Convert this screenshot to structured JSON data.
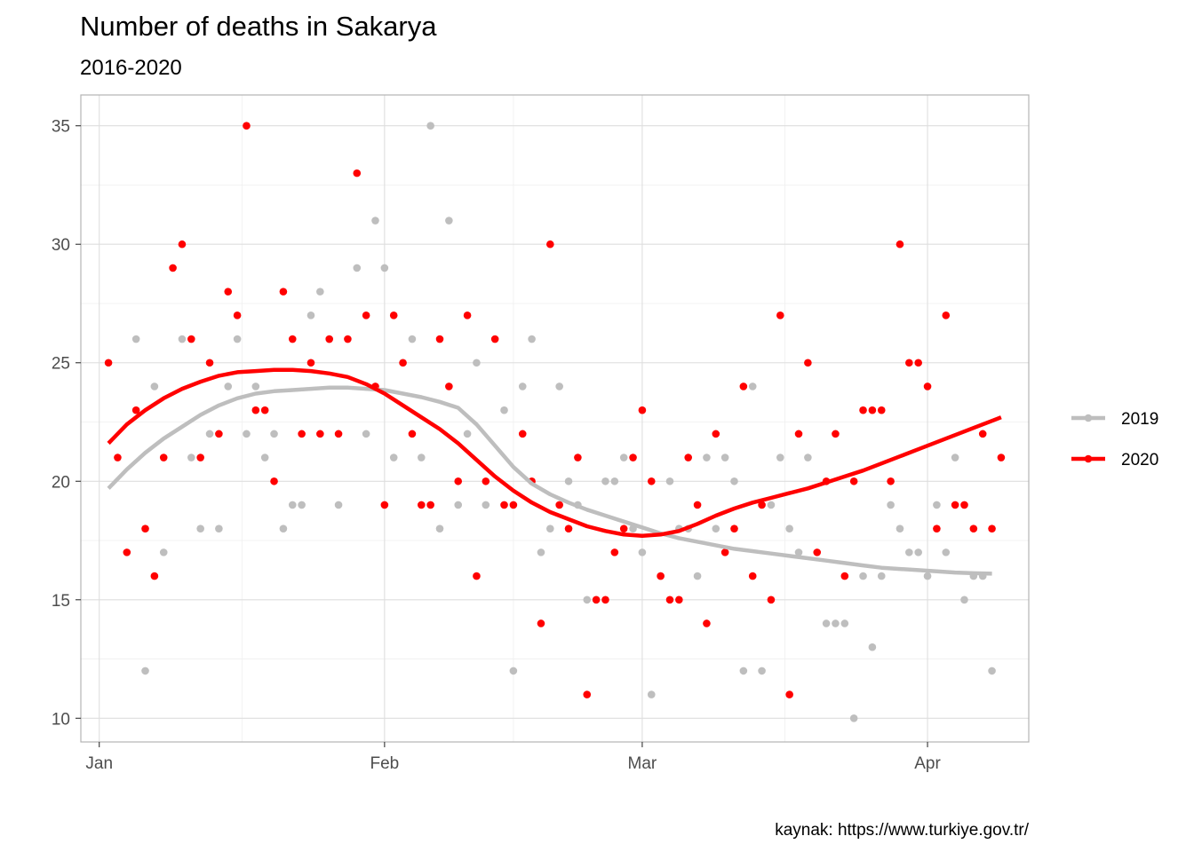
{
  "chart_data": {
    "type": "scatter",
    "title": "Number of deaths in Sakarya",
    "subtitle": "2016-2020",
    "caption": "kaynak: https://www.turkiye.gov.tr/",
    "xlabel": "",
    "ylabel": "",
    "x_unit": "day of year",
    "xlim": [
      -2,
      101
    ],
    "ylim": [
      9.0,
      36.3
    ],
    "x_ticks": [
      {
        "value": 0,
        "label": "Jan"
      },
      {
        "value": 31,
        "label": "Feb"
      },
      {
        "value": 59,
        "label": "Mar"
      },
      {
        "value": 90,
        "label": "Apr"
      }
    ],
    "y_ticks": [
      10,
      15,
      20,
      25,
      30,
      35
    ],
    "legend_position": "right",
    "series": [
      {
        "name": "2019",
        "color": "#bebebe",
        "points": [
          [
            4,
            26
          ],
          [
            5,
            12
          ],
          [
            6,
            24
          ],
          [
            7,
            17
          ],
          [
            9,
            26
          ],
          [
            10,
            21
          ],
          [
            11,
            18
          ],
          [
            12,
            22
          ],
          [
            13,
            18
          ],
          [
            14,
            24
          ],
          [
            15,
            26
          ],
          [
            16,
            22
          ],
          [
            17,
            24
          ],
          [
            18,
            21
          ],
          [
            19,
            22
          ],
          [
            20,
            18
          ],
          [
            21,
            19
          ],
          [
            22,
            19
          ],
          [
            23,
            27
          ],
          [
            24,
            28
          ],
          [
            25,
            26
          ],
          [
            26,
            19
          ],
          [
            28,
            29
          ],
          [
            29,
            22
          ],
          [
            30,
            31
          ],
          [
            31,
            29
          ],
          [
            32,
            21
          ],
          [
            33,
            25
          ],
          [
            34,
            26
          ],
          [
            35,
            21
          ],
          [
            36,
            35
          ],
          [
            37,
            18
          ],
          [
            38,
            31
          ],
          [
            39,
            19
          ],
          [
            40,
            22
          ],
          [
            41,
            25
          ],
          [
            42,
            19
          ],
          [
            44,
            23
          ],
          [
            45,
            12
          ],
          [
            46,
            24
          ],
          [
            47,
            26
          ],
          [
            48,
            17
          ],
          [
            49,
            18
          ],
          [
            50,
            24
          ],
          [
            51,
            20
          ],
          [
            52,
            19
          ],
          [
            53,
            15
          ],
          [
            54,
            15
          ],
          [
            55,
            20
          ],
          [
            56,
            20
          ],
          [
            57,
            21
          ],
          [
            58,
            18
          ],
          [
            59,
            17
          ],
          [
            60,
            11
          ],
          [
            61,
            16
          ],
          [
            62,
            20
          ],
          [
            63,
            18
          ],
          [
            64,
            18
          ],
          [
            65,
            16
          ],
          [
            66,
            21
          ],
          [
            67,
            18
          ],
          [
            68,
            21
          ],
          [
            69,
            20
          ],
          [
            70,
            12
          ],
          [
            71,
            24
          ],
          [
            72,
            12
          ],
          [
            73,
            19
          ],
          [
            74,
            21
          ],
          [
            75,
            18
          ],
          [
            76,
            17
          ],
          [
            77,
            21
          ],
          [
            79,
            14
          ],
          [
            80,
            14
          ],
          [
            81,
            14
          ],
          [
            82,
            10
          ],
          [
            83,
            16
          ],
          [
            84,
            13
          ],
          [
            85,
            16
          ],
          [
            86,
            19
          ],
          [
            87,
            18
          ],
          [
            88,
            17
          ],
          [
            89,
            17
          ],
          [
            90,
            16
          ],
          [
            91,
            19
          ],
          [
            92,
            17
          ],
          [
            93,
            21
          ],
          [
            94,
            15
          ],
          [
            95,
            16
          ],
          [
            96,
            16
          ],
          [
            97,
            12
          ]
        ],
        "smooth": [
          [
            1,
            19.7
          ],
          [
            3,
            20.5
          ],
          [
            5,
            21.2
          ],
          [
            7,
            21.8
          ],
          [
            9,
            22.3
          ],
          [
            11,
            22.8
          ],
          [
            13,
            23.2
          ],
          [
            15,
            23.5
          ],
          [
            17,
            23.7
          ],
          [
            19,
            23.8
          ],
          [
            21,
            23.85
          ],
          [
            23,
            23.9
          ],
          [
            25,
            23.95
          ],
          [
            27,
            23.95
          ],
          [
            29,
            23.9
          ],
          [
            31,
            23.85
          ],
          [
            33,
            23.7
          ],
          [
            35,
            23.55
          ],
          [
            37,
            23.35
          ],
          [
            39,
            23.1
          ],
          [
            41,
            22.4
          ],
          [
            43,
            21.5
          ],
          [
            45,
            20.6
          ],
          [
            47,
            19.9
          ],
          [
            49,
            19.45
          ],
          [
            51,
            19.1
          ],
          [
            53,
            18.8
          ],
          [
            55,
            18.55
          ],
          [
            57,
            18.3
          ],
          [
            59,
            18.05
          ],
          [
            61,
            17.8
          ],
          [
            63,
            17.6
          ],
          [
            65,
            17.45
          ],
          [
            67,
            17.3
          ],
          [
            69,
            17.15
          ],
          [
            71,
            17.05
          ],
          [
            73,
            16.95
          ],
          [
            75,
            16.85
          ],
          [
            77,
            16.75
          ],
          [
            79,
            16.65
          ],
          [
            81,
            16.55
          ],
          [
            83,
            16.45
          ],
          [
            85,
            16.35
          ],
          [
            87,
            16.3
          ],
          [
            89,
            16.25
          ],
          [
            91,
            16.2
          ],
          [
            93,
            16.15
          ],
          [
            95,
            16.12
          ],
          [
            97,
            16.1
          ]
        ]
      },
      {
        "name": "2020",
        "color": "#ff0000",
        "points": [
          [
            1,
            25
          ],
          [
            2,
            21
          ],
          [
            3,
            17
          ],
          [
            4,
            23
          ],
          [
            5,
            18
          ],
          [
            6,
            16
          ],
          [
            7,
            21
          ],
          [
            8,
            29
          ],
          [
            9,
            30
          ],
          [
            10,
            26
          ],
          [
            11,
            21
          ],
          [
            12,
            25
          ],
          [
            13,
            22
          ],
          [
            14,
            28
          ],
          [
            15,
            27
          ],
          [
            16,
            35
          ],
          [
            17,
            23
          ],
          [
            18,
            23
          ],
          [
            19,
            20
          ],
          [
            20,
            28
          ],
          [
            21,
            26
          ],
          [
            22,
            22
          ],
          [
            23,
            25
          ],
          [
            24,
            22
          ],
          [
            25,
            26
          ],
          [
            26,
            22
          ],
          [
            27,
            26
          ],
          [
            28,
            33
          ],
          [
            29,
            27
          ],
          [
            30,
            24
          ],
          [
            31,
            19
          ],
          [
            32,
            27
          ],
          [
            33,
            25
          ],
          [
            34,
            22
          ],
          [
            35,
            19
          ],
          [
            36,
            19
          ],
          [
            37,
            26
          ],
          [
            38,
            24
          ],
          [
            39,
            20
          ],
          [
            40,
            27
          ],
          [
            41,
            16
          ],
          [
            42,
            20
          ],
          [
            43,
            26
          ],
          [
            44,
            19
          ],
          [
            45,
            19
          ],
          [
            46,
            22
          ],
          [
            47,
            20
          ],
          [
            48,
            14
          ],
          [
            49,
            30
          ],
          [
            50,
            19
          ],
          [
            51,
            18
          ],
          [
            52,
            21
          ],
          [
            53,
            11
          ],
          [
            54,
            15
          ],
          [
            55,
            15
          ],
          [
            56,
            17
          ],
          [
            57,
            18
          ],
          [
            58,
            21
          ],
          [
            59,
            23
          ],
          [
            60,
            20
          ],
          [
            61,
            16
          ],
          [
            62,
            15
          ],
          [
            63,
            15
          ],
          [
            64,
            21
          ],
          [
            65,
            19
          ],
          [
            66,
            14
          ],
          [
            67,
            22
          ],
          [
            68,
            17
          ],
          [
            69,
            18
          ],
          [
            70,
            24
          ],
          [
            71,
            16
          ],
          [
            72,
            19
          ],
          [
            73,
            15
          ],
          [
            74,
            27
          ],
          [
            75,
            11
          ],
          [
            76,
            22
          ],
          [
            77,
            25
          ],
          [
            78,
            17
          ],
          [
            79,
            20
          ],
          [
            80,
            22
          ],
          [
            81,
            16
          ],
          [
            82,
            20
          ],
          [
            83,
            23
          ],
          [
            84,
            23
          ],
          [
            85,
            23
          ],
          [
            86,
            20
          ],
          [
            87,
            30
          ],
          [
            88,
            25
          ],
          [
            89,
            25
          ],
          [
            90,
            24
          ],
          [
            91,
            18
          ],
          [
            92,
            27
          ],
          [
            93,
            19
          ],
          [
            94,
            19
          ],
          [
            95,
            18
          ],
          [
            96,
            22
          ],
          [
            97,
            18
          ],
          [
            98,
            21
          ]
        ],
        "smooth": [
          [
            1,
            21.6
          ],
          [
            3,
            22.4
          ],
          [
            5,
            23.0
          ],
          [
            7,
            23.5
          ],
          [
            9,
            23.9
          ],
          [
            11,
            24.2
          ],
          [
            13,
            24.45
          ],
          [
            15,
            24.6
          ],
          [
            17,
            24.65
          ],
          [
            19,
            24.7
          ],
          [
            21,
            24.7
          ],
          [
            23,
            24.65
          ],
          [
            25,
            24.55
          ],
          [
            27,
            24.4
          ],
          [
            29,
            24.1
          ],
          [
            31,
            23.7
          ],
          [
            33,
            23.2
          ],
          [
            35,
            22.7
          ],
          [
            37,
            22.2
          ],
          [
            39,
            21.6
          ],
          [
            41,
            20.9
          ],
          [
            43,
            20.2
          ],
          [
            45,
            19.6
          ],
          [
            47,
            19.1
          ],
          [
            49,
            18.7
          ],
          [
            51,
            18.4
          ],
          [
            53,
            18.1
          ],
          [
            55,
            17.9
          ],
          [
            57,
            17.75
          ],
          [
            59,
            17.7
          ],
          [
            61,
            17.75
          ],
          [
            63,
            17.9
          ],
          [
            65,
            18.2
          ],
          [
            67,
            18.55
          ],
          [
            69,
            18.85
          ],
          [
            71,
            19.1
          ],
          [
            73,
            19.3
          ],
          [
            75,
            19.5
          ],
          [
            77,
            19.7
          ],
          [
            79,
            19.95
          ],
          [
            81,
            20.2
          ],
          [
            83,
            20.45
          ],
          [
            85,
            20.75
          ],
          [
            87,
            21.05
          ],
          [
            89,
            21.35
          ],
          [
            91,
            21.65
          ],
          [
            93,
            21.95
          ],
          [
            95,
            22.25
          ],
          [
            97,
            22.55
          ],
          [
            98,
            22.7
          ]
        ]
      }
    ]
  },
  "legend": {
    "entries": [
      {
        "label": "2019",
        "color": "#bebebe"
      },
      {
        "label": "2020",
        "color": "#ff0000"
      }
    ]
  }
}
